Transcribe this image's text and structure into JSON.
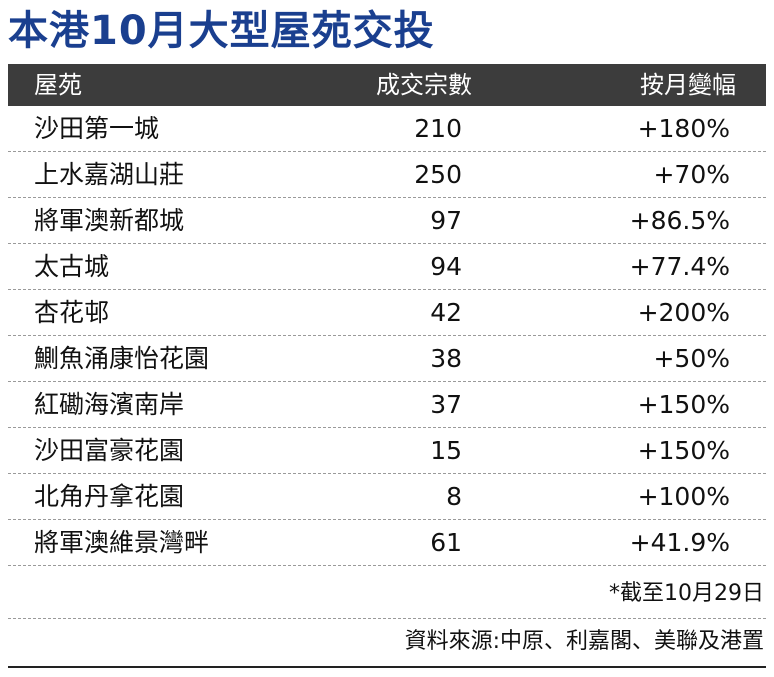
{
  "title": "本港10月大型屋苑交投",
  "table": {
    "headers": {
      "estate": "屋苑",
      "transactions": "成交宗數",
      "monthly_change": "按月變幅"
    },
    "rows": [
      {
        "estate": "沙田第一城",
        "transactions": "210",
        "monthly_change": "+180%"
      },
      {
        "estate": "上水嘉湖山莊",
        "transactions": "250",
        "monthly_change": "+70%"
      },
      {
        "estate": "將軍澳新都城",
        "transactions": "97",
        "monthly_change": "+86.5%"
      },
      {
        "estate": "太古城",
        "transactions": "94",
        "monthly_change": "+77.4%"
      },
      {
        "estate": "杏花邨",
        "transactions": "42",
        "monthly_change": "+200%"
      },
      {
        "estate": "鰂魚涌康怡花園",
        "transactions": "38",
        "monthly_change": "+50%"
      },
      {
        "estate": "紅磡海濱南岸",
        "transactions": "37",
        "monthly_change": "+150%"
      },
      {
        "estate": "沙田富豪花園",
        "transactions": "15",
        "monthly_change": "+150%"
      },
      {
        "estate": "北角丹拿花園",
        "transactions": "8",
        "monthly_change": "+100%"
      },
      {
        "estate": "將軍澳維景灣畔",
        "transactions": "61",
        "monthly_change": "+41.9%"
      }
    ]
  },
  "footnote": "*截至10月29日",
  "source": "資料來源:中原、利嘉閣、美聯及港置",
  "colors": {
    "title": "#1a3f8f",
    "header_background": "#3c3c3c",
    "header_text": "#ffffff",
    "body_text": "#111111"
  }
}
